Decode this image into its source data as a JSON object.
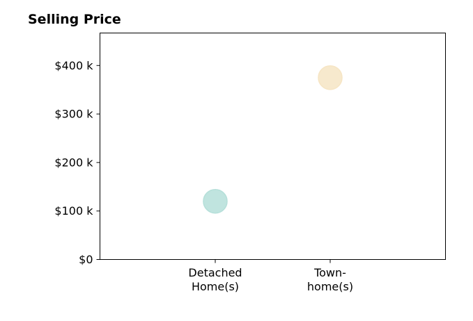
{
  "chart_data": {
    "type": "scatter",
    "title": "Selling Price",
    "xlabel": "",
    "ylabel": "",
    "categories": [
      [
        "Detached",
        "Home(s)"
      ],
      [
        "Town-",
        "home(s)"
      ]
    ],
    "values": [
      120000,
      375000
    ],
    "colors": [
      "#b5dfd9",
      "#f6e5c4"
    ],
    "ylim": [
      0,
      467000
    ],
    "yticks": [
      0,
      100000,
      200000,
      300000,
      400000
    ],
    "ytick_labels": [
      "$0",
      "$100 k",
      "$200 k",
      "$300 k",
      "$400 k"
    ],
    "grid": false,
    "legend": "none"
  }
}
